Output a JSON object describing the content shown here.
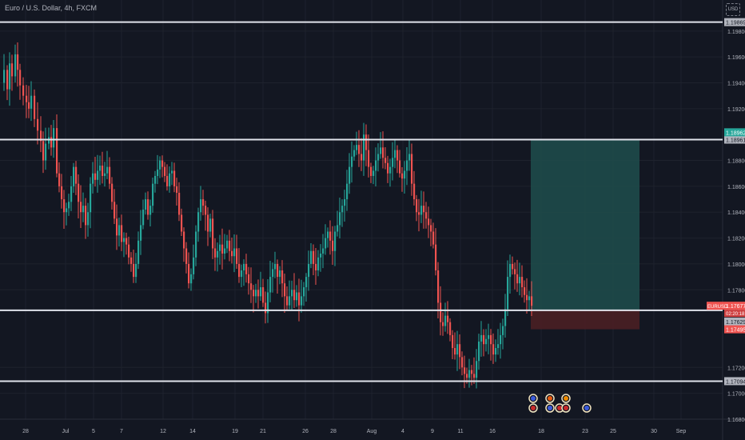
{
  "header": {
    "symbol_title": "Euro / U.S. Dollar, 4h, FXCM",
    "currency_label": "USD"
  },
  "colors": {
    "background": "#131722",
    "grid": "#1e222d",
    "bull": "#26a69a",
    "bear": "#ef5350",
    "level_line": "#e0e3eb",
    "target_zone": "#1e4a4a",
    "stop_zone": "#4a1f24",
    "axis_text": "#b2b5be"
  },
  "chart_data": {
    "type": "candlestick",
    "symbol": "EURUSD",
    "timeframe": "4h",
    "source": "FXCM",
    "ylim": [
      1.168,
      1.2004
    ],
    "y_ticks": [
      "1.19800",
      "1.19600",
      "1.19400",
      "1.19200",
      "1.18800",
      "1.18600",
      "1.18400",
      "1.18200",
      "1.18000",
      "1.17800",
      "1.17200",
      "1.17000",
      "1.16800"
    ],
    "x_ticks": [
      "28",
      "Jul",
      "5",
      "7",
      "12",
      "14",
      "19",
      "21",
      "26",
      "28",
      "Aug",
      "4",
      "9",
      "11",
      "16",
      "18",
      "23",
      "25",
      "30",
      "Sep"
    ],
    "horizontal_levels": [
      {
        "price": 1.19869,
        "label": "1.19869"
      },
      {
        "price": 1.18961,
        "label": "1.18961"
      },
      {
        "price": 1.17642,
        "label": "1.17642"
      },
      {
        "price": 1.17094,
        "label": "1.17094"
      }
    ],
    "price_labels": [
      {
        "price": 1.18962,
        "label": "1.18962",
        "color": "#26a69a"
      },
      {
        "price": 1.17677,
        "label": "1.17677",
        "color": "#ef5350",
        "tag": "EURUSD",
        "countdown": "02:20:18"
      },
      {
        "price": 1.17629,
        "label": "1.17629",
        "color": "#b2b5be"
      },
      {
        "price": 1.17495,
        "label": "1.17495",
        "color": "#ef5350"
      }
    ],
    "long_position": {
      "entry": 1.17642,
      "target": 1.18962,
      "stop": 1.17495
    },
    "close_path": [
      [
        0,
        1.194
      ],
      [
        4,
        1.195
      ],
      [
        8,
        1.1935
      ],
      [
        11,
        1.1955
      ],
      [
        14,
        1.1945
      ],
      [
        18,
        1.1962
      ],
      [
        21,
        1.195
      ],
      [
        24,
        1.1938
      ],
      [
        28,
        1.193
      ],
      [
        32,
        1.1925
      ],
      [
        35,
        1.192
      ],
      [
        38,
        1.193
      ],
      [
        42,
        1.1912
      ],
      [
        46,
        1.1903
      ],
      [
        50,
        1.1895
      ],
      [
        53,
        1.188
      ],
      [
        56,
        1.1893
      ],
      [
        60,
        1.1898
      ],
      [
        63,
        1.189
      ],
      [
        66,
        1.1905
      ],
      [
        70,
        1.187
      ],
      [
        73,
        1.186
      ],
      [
        76,
        1.185
      ],
      [
        79,
        1.184
      ],
      [
        82,
        1.1843
      ],
      [
        85,
        1.1848
      ],
      [
        88,
        1.186
      ],
      [
        91,
        1.1875
      ],
      [
        94,
        1.1862
      ],
      [
        97,
        1.1848
      ],
      [
        100,
        1.184
      ],
      [
        103,
        1.1845
      ],
      [
        106,
        1.183
      ],
      [
        109,
        1.184
      ],
      [
        112,
        1.1862
      ],
      [
        115,
        1.187
      ],
      [
        118,
        1.1865
      ],
      [
        121,
        1.1872
      ],
      [
        124,
        1.1876
      ],
      [
        127,
        1.1868
      ],
      [
        130,
        1.187
      ],
      [
        133,
        1.1875
      ],
      [
        136,
        1.1862
      ],
      [
        139,
        1.1848
      ],
      [
        142,
        1.1835
      ],
      [
        145,
        1.1822
      ],
      [
        148,
        1.183
      ],
      [
        151,
        1.1817
      ],
      [
        154,
        1.182
      ],
      [
        157,
        1.1815
      ],
      [
        160,
        1.1805
      ],
      [
        163,
        1.18
      ],
      [
        166,
        1.179
      ],
      [
        169,
        1.18
      ],
      [
        172,
        1.1818
      ],
      [
        175,
        1.183
      ],
      [
        178,
        1.1842
      ],
      [
        181,
        1.185
      ],
      [
        184,
        1.1838
      ],
      [
        187,
        1.1845
      ],
      [
        190,
        1.1862
      ],
      [
        193,
        1.1868
      ],
      [
        196,
        1.1873
      ],
      [
        199,
        1.188
      ],
      [
        202,
        1.1875
      ],
      [
        205,
        1.1868
      ],
      [
        208,
        1.186
      ],
      [
        211,
        1.187
      ],
      [
        214,
        1.1872
      ],
      [
        217,
        1.186
      ],
      [
        220,
        1.1855
      ],
      [
        223,
        1.1838
      ],
      [
        226,
        1.1825
      ],
      [
        229,
        1.1812
      ],
      [
        232,
        1.18
      ],
      [
        235,
        1.1785
      ],
      [
        238,
        1.1792
      ],
      [
        241,
        1.1805
      ],
      [
        244,
        1.1825
      ],
      [
        247,
        1.184
      ],
      [
        250,
        1.185
      ],
      [
        253,
        1.1845
      ],
      [
        256,
        1.1838
      ],
      [
        259,
        1.1825
      ],
      [
        262,
        1.1835
      ],
      [
        265,
        1.1812
      ],
      [
        268,
        1.1805
      ],
      [
        271,
        1.181
      ],
      [
        274,
        1.1815
      ],
      [
        277,
        1.1808
      ],
      [
        280,
        1.1812
      ],
      [
        283,
        1.1818
      ],
      [
        286,
        1.181
      ],
      [
        289,
        1.1806
      ],
      [
        292,
        1.1812
      ],
      [
        295,
        1.18
      ],
      [
        298,
        1.179
      ],
      [
        301,
        1.1795
      ],
      [
        304,
        1.18
      ],
      [
        307,
        1.1792
      ],
      [
        310,
        1.1785
      ],
      [
        313,
        1.178
      ],
      [
        316,
        1.1775
      ],
      [
        319,
        1.178
      ],
      [
        322,
        1.1775
      ],
      [
        325,
        1.1782
      ],
      [
        328,
        1.177
      ],
      [
        331,
        1.1762
      ],
      [
        334,
        1.1778
      ],
      [
        337,
        1.179
      ],
      [
        340,
        1.1796
      ],
      [
        343,
        1.18
      ],
      [
        346,
        1.179
      ],
      [
        349,
        1.1795
      ],
      [
        352,
        1.1785
      ],
      [
        355,
        1.1775
      ],
      [
        358,
        1.1768
      ],
      [
        361,
        1.1775
      ],
      [
        364,
        1.178
      ],
      [
        367,
        1.1772
      ],
      [
        370,
        1.1778
      ],
      [
        373,
        1.1768
      ],
      [
        376,
        1.1775
      ],
      [
        379,
        1.1782
      ],
      [
        382,
        1.179
      ],
      [
        385,
        1.18
      ],
      [
        388,
        1.181
      ],
      [
        391,
        1.18
      ],
      [
        394,
        1.1795
      ],
      [
        397,
        1.1805
      ],
      [
        400,
        1.1808
      ],
      [
        403,
        1.1812
      ],
      [
        406,
        1.182
      ],
      [
        409,
        1.1825
      ],
      [
        412,
        1.1818
      ],
      [
        415,
        1.181
      ],
      [
        418,
        1.1825
      ],
      [
        421,
        1.183
      ],
      [
        424,
        1.184
      ],
      [
        427,
        1.1845
      ],
      [
        430,
        1.185
      ],
      [
        433,
        1.1862
      ],
      [
        436,
        1.1875
      ],
      [
        439,
        1.1883
      ],
      [
        442,
        1.1888
      ],
      [
        445,
        1.1892
      ],
      [
        448,
        1.1885
      ],
      [
        451,
        1.188
      ],
      [
        454,
        1.19
      ],
      [
        457,
        1.1888
      ],
      [
        460,
        1.1875
      ],
      [
        463,
        1.1868
      ],
      [
        466,
        1.1872
      ],
      [
        469,
        1.188
      ],
      [
        472,
        1.1885
      ],
      [
        475,
        1.189
      ],
      [
        478,
        1.1882
      ],
      [
        481,
        1.1878
      ],
      [
        484,
        1.187
      ],
      [
        487,
        1.1875
      ],
      [
        490,
        1.1882
      ],
      [
        493,
        1.1888
      ],
      [
        496,
        1.188
      ],
      [
        499,
        1.187
      ],
      [
        502,
        1.1866
      ],
      [
        505,
        1.1872
      ],
      [
        508,
        1.188
      ],
      [
        511,
        1.1885
      ],
      [
        514,
        1.1862
      ],
      [
        517,
        1.185
      ],
      [
        520,
        1.184
      ],
      [
        523,
        1.1838
      ],
      [
        526,
        1.1845
      ],
      [
        529,
        1.184
      ],
      [
        532,
        1.1835
      ],
      [
        535,
        1.183
      ],
      [
        538,
        1.1825
      ],
      [
        541,
        1.1815
      ],
      [
        544,
        1.1795
      ],
      [
        547,
        1.177
      ],
      [
        550,
        1.1755
      ],
      [
        553,
        1.1752
      ],
      [
        556,
        1.176
      ],
      [
        559,
        1.1755
      ],
      [
        562,
        1.1745
      ],
      [
        565,
        1.1735
      ],
      [
        568,
        1.173
      ],
      [
        571,
        1.1738
      ],
      [
        574,
        1.1728
      ],
      [
        577,
        1.172
      ],
      [
        580,
        1.1715
      ],
      [
        583,
        1.1712
      ],
      [
        586,
        1.1718
      ],
      [
        589,
        1.1715
      ],
      [
        592,
        1.1712
      ],
      [
        595,
        1.1725
      ],
      [
        598,
        1.174
      ],
      [
        601,
        1.1745
      ],
      [
        604,
        1.1738
      ],
      [
        607,
        1.1742
      ],
      [
        610,
        1.1745
      ],
      [
        613,
        1.1738
      ],
      [
        616,
        1.173
      ],
      [
        619,
        1.1735
      ],
      [
        622,
        1.1738
      ],
      [
        625,
        1.1745
      ],
      [
        628,
        1.1752
      ],
      [
        631,
        1.1765
      ],
      [
        634,
        1.179
      ],
      [
        637,
        1.18
      ],
      [
        640,
        1.1796
      ],
      [
        643,
        1.1792
      ],
      [
        646,
        1.1785
      ],
      [
        649,
        1.179
      ],
      [
        652,
        1.1782
      ],
      [
        655,
        1.1776
      ],
      [
        658,
        1.1772
      ],
      [
        661,
        1.1775
      ],
      [
        664,
        1.17677
      ]
    ],
    "event_icons": [
      {
        "x_tick": "16",
        "row": 1
      },
      {
        "x_tick": "16",
        "row": 2
      },
      {
        "x_tick": "18",
        "row": 1
      },
      {
        "x_tick": "18",
        "row": 2
      },
      {
        "x_tick": "18",
        "row": 3
      },
      {
        "x_tick": "23",
        "row": 1
      },
      {
        "x_tick": "23",
        "row": 2
      },
      {
        "x_tick": "25",
        "row": 2
      }
    ]
  }
}
